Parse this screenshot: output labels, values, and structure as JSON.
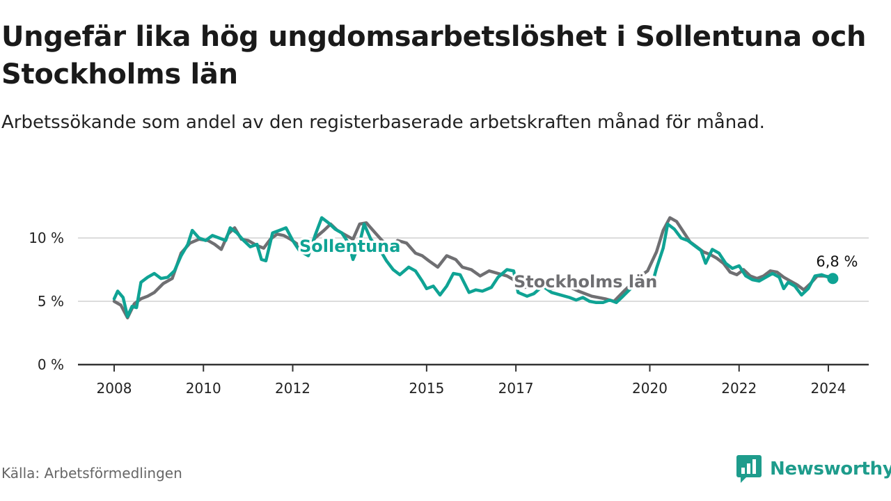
{
  "colors": {
    "sollentuna": "#0fa394",
    "stockholm": "#6f6f72",
    "grid": "#dcdcdc",
    "axis": "#333333",
    "brand": "#1e9c8c"
  },
  "source": "Källa: Arbetsförmedlingen",
  "brand": {
    "name": "Newsworthy",
    "icon": "newsworthy-logo-icon"
  },
  "chart_data": {
    "type": "line",
    "title": "Ungefär lika hög ungdomsarbetslöshet i Sollentuna och Stockholms län",
    "subtitle": "Arbetssökande som andel av den registerbaserade arbetskraften månad för månad.",
    "xlabel": "",
    "ylabel": "",
    "xlim": [
      2008.0,
      2024.25
    ],
    "ylim": [
      0,
      12
    ],
    "x_ticks": [
      {
        "value": 2008,
        "label": "2008"
      },
      {
        "value": 2010,
        "label": "2010"
      },
      {
        "value": 2012,
        "label": "2012"
      },
      {
        "value": 2015,
        "label": "2015"
      },
      {
        "value": 2017,
        "label": "2017"
      },
      {
        "value": 2020,
        "label": "2020"
      },
      {
        "value": 2022,
        "label": "2022"
      },
      {
        "value": 2024,
        "label": "2024"
      }
    ],
    "y_ticks": [
      {
        "value": 0,
        "label": "0 %"
      },
      {
        "value": 5,
        "label": "5 %"
      },
      {
        "value": 10,
        "label": "10 %"
      }
    ],
    "grid": true,
    "series": [
      {
        "name": "Stockholms län",
        "label": "Stockholms län",
        "points": [
          [
            2008.0,
            5.0
          ],
          [
            2008.15,
            4.7
          ],
          [
            2008.3,
            3.7
          ],
          [
            2008.45,
            4.8
          ],
          [
            2008.6,
            5.2
          ],
          [
            2008.75,
            5.4
          ],
          [
            2008.9,
            5.7
          ],
          [
            2009.1,
            6.4
          ],
          [
            2009.3,
            6.8
          ],
          [
            2009.5,
            8.8
          ],
          [
            2009.7,
            9.6
          ],
          [
            2009.9,
            9.9
          ],
          [
            2010.1,
            9.8
          ],
          [
            2010.25,
            9.5
          ],
          [
            2010.4,
            9.1
          ],
          [
            2010.55,
            10.3
          ],
          [
            2010.7,
            10.8
          ],
          [
            2010.85,
            9.9
          ],
          [
            2011.0,
            9.8
          ],
          [
            2011.2,
            9.4
          ],
          [
            2011.35,
            9.2
          ],
          [
            2011.5,
            9.9
          ],
          [
            2011.65,
            10.3
          ],
          [
            2011.8,
            10.2
          ],
          [
            2011.95,
            9.9
          ],
          [
            2012.15,
            9.4
          ],
          [
            2012.3,
            9.0
          ],
          [
            2012.5,
            10.0
          ],
          [
            2012.7,
            10.6
          ],
          [
            2012.85,
            11.1
          ],
          [
            2013.0,
            10.6
          ],
          [
            2013.2,
            10.2
          ],
          [
            2013.35,
            9.9
          ],
          [
            2013.5,
            11.1
          ],
          [
            2013.65,
            11.2
          ],
          [
            2013.8,
            10.6
          ],
          [
            2014.0,
            9.8
          ],
          [
            2014.2,
            9.3
          ],
          [
            2014.35,
            9.8
          ],
          [
            2014.55,
            9.6
          ],
          [
            2014.75,
            8.8
          ],
          [
            2014.9,
            8.6
          ],
          [
            2015.05,
            8.2
          ],
          [
            2015.25,
            7.7
          ],
          [
            2015.45,
            8.6
          ],
          [
            2015.65,
            8.3
          ],
          [
            2015.8,
            7.7
          ],
          [
            2016.0,
            7.5
          ],
          [
            2016.2,
            7.0
          ],
          [
            2016.4,
            7.4
          ],
          [
            2016.6,
            7.2
          ],
          [
            2016.8,
            7.0
          ],
          [
            2016.95,
            6.7
          ]
        ]
      },
      {
        "name": "Sollentuna",
        "label": "Sollentuna",
        "points": [
          [
            2008.0,
            5.2
          ],
          [
            2008.08,
            5.8
          ],
          [
            2008.2,
            5.3
          ],
          [
            2008.3,
            3.8
          ],
          [
            2008.4,
            4.6
          ],
          [
            2008.5,
            4.5
          ],
          [
            2008.6,
            6.5
          ],
          [
            2008.75,
            6.9
          ],
          [
            2008.9,
            7.2
          ],
          [
            2009.05,
            6.8
          ],
          [
            2009.2,
            6.9
          ],
          [
            2009.35,
            7.4
          ],
          [
            2009.5,
            8.6
          ],
          [
            2009.65,
            9.5
          ],
          [
            2009.75,
            10.6
          ],
          [
            2009.9,
            10.0
          ],
          [
            2010.05,
            9.8
          ],
          [
            2010.2,
            10.2
          ],
          [
            2010.35,
            10.0
          ],
          [
            2010.5,
            9.8
          ],
          [
            2010.6,
            10.8
          ],
          [
            2010.75,
            10.4
          ],
          [
            2010.9,
            9.8
          ],
          [
            2011.05,
            9.3
          ],
          [
            2011.2,
            9.5
          ],
          [
            2011.3,
            8.3
          ],
          [
            2011.4,
            8.2
          ],
          [
            2011.55,
            10.4
          ],
          [
            2011.7,
            10.6
          ],
          [
            2011.85,
            10.8
          ],
          [
            2012.0,
            9.8
          ],
          [
            2012.15,
            9.0
          ],
          [
            2012.35,
            8.6
          ],
          [
            2012.5,
            10.2
          ],
          [
            2012.65,
            11.6
          ],
          [
            2012.8,
            11.2
          ],
          [
            2012.95,
            10.7
          ],
          [
            2013.1,
            10.4
          ],
          [
            2013.25,
            9.6
          ],
          [
            2013.35,
            8.3
          ],
          [
            2013.5,
            9.6
          ],
          [
            2013.6,
            11.1
          ],
          [
            2013.75,
            9.9
          ],
          [
            2013.95,
            9.1
          ],
          [
            2014.1,
            8.2
          ],
          [
            2014.25,
            7.5
          ],
          [
            2014.4,
            7.1
          ],
          [
            2014.6,
            7.7
          ],
          [
            2014.75,
            7.4
          ],
          [
            2014.9,
            6.6
          ],
          [
            2015.0,
            6.0
          ],
          [
            2015.15,
            6.2
          ],
          [
            2015.3,
            5.5
          ],
          [
            2015.45,
            6.2
          ],
          [
            2015.6,
            7.2
          ],
          [
            2015.75,
            7.1
          ],
          [
            2015.95,
            5.7
          ],
          [
            2016.1,
            5.9
          ],
          [
            2016.25,
            5.8
          ],
          [
            2016.45,
            6.1
          ],
          [
            2016.6,
            6.9
          ],
          [
            2016.8,
            7.5
          ],
          [
            2016.95,
            7.4
          ],
          [
            2017.05,
            5.7
          ],
          [
            2017.25,
            5.4
          ],
          [
            2017.4,
            5.6
          ],
          [
            2017.6,
            6.2
          ],
          [
            2017.8,
            5.7
          ],
          [
            2018.0,
            5.5
          ],
          [
            2018.2,
            5.3
          ],
          [
            2018.35,
            5.1
          ],
          [
            2018.5,
            5.3
          ],
          [
            2018.65,
            5.0
          ],
          [
            2018.8,
            4.9
          ],
          [
            2018.95,
            4.9
          ],
          [
            2019.1,
            5.1
          ],
          [
            2019.25,
            4.9
          ],
          [
            2019.4,
            5.4
          ],
          [
            2019.6,
            6.1
          ],
          [
            2019.75,
            6.5
          ],
          [
            2019.95,
            6.7
          ],
          [
            2020.05,
            6.3
          ],
          [
            2020.15,
            7.6
          ],
          [
            2020.3,
            9.2
          ],
          [
            2020.4,
            11.1
          ],
          [
            2020.55,
            10.7
          ],
          [
            2020.7,
            10.0
          ],
          [
            2020.85,
            9.8
          ],
          [
            2021.0,
            9.4
          ],
          [
            2021.15,
            9.0
          ],
          [
            2021.25,
            8.0
          ],
          [
            2021.4,
            9.1
          ],
          [
            2021.55,
            8.8
          ],
          [
            2021.7,
            8.0
          ],
          [
            2021.85,
            7.6
          ],
          [
            2022.0,
            7.8
          ],
          [
            2022.15,
            7.0
          ],
          [
            2022.3,
            6.7
          ],
          [
            2022.45,
            6.6
          ],
          [
            2022.6,
            6.9
          ],
          [
            2022.75,
            7.2
          ],
          [
            2022.9,
            6.9
          ],
          [
            2023.0,
            6.0
          ],
          [
            2023.1,
            6.5
          ],
          [
            2023.25,
            6.2
          ],
          [
            2023.4,
            5.5
          ],
          [
            2023.55,
            6.0
          ],
          [
            2023.7,
            7.0
          ],
          [
            2023.85,
            7.1
          ],
          [
            2024.0,
            6.9
          ],
          [
            2024.1,
            6.8
          ]
        ]
      }
    ],
    "extra_series_stockholm_tail": [
      [
        2016.95,
        6.7
      ],
      [
        2017.2,
        6.1
      ],
      [
        2017.5,
        6.5
      ],
      [
        2017.8,
        6.0
      ],
      [
        2018.1,
        6.3
      ],
      [
        2018.4,
        5.8
      ],
      [
        2018.7,
        5.4
      ],
      [
        2019.0,
        5.2
      ],
      [
        2019.2,
        5.0
      ],
      [
        2019.45,
        5.9
      ],
      [
        2019.75,
        6.9
      ],
      [
        2019.95,
        7.4
      ],
      [
        2020.15,
        8.9
      ],
      [
        2020.3,
        10.6
      ],
      [
        2020.45,
        11.6
      ],
      [
        2020.6,
        11.3
      ],
      [
        2020.75,
        10.5
      ],
      [
        2020.9,
        9.7
      ],
      [
        2021.05,
        9.3
      ],
      [
        2021.2,
        8.9
      ],
      [
        2021.35,
        8.7
      ],
      [
        2021.5,
        8.4
      ],
      [
        2021.65,
        8.0
      ],
      [
        2021.8,
        7.3
      ],
      [
        2021.95,
        7.1
      ],
      [
        2022.1,
        7.5
      ],
      [
        2022.25,
        7.0
      ],
      [
        2022.4,
        6.8
      ],
      [
        2022.55,
        7.0
      ],
      [
        2022.7,
        7.4
      ],
      [
        2022.85,
        7.3
      ],
      [
        2023.0,
        6.9
      ],
      [
        2023.15,
        6.6
      ],
      [
        2023.3,
        6.3
      ],
      [
        2023.45,
        5.9
      ],
      [
        2023.6,
        6.4
      ],
      [
        2023.75,
        7.0
      ],
      [
        2023.9,
        7.0
      ],
      [
        2024.1,
        6.9
      ]
    ],
    "annotations": [
      {
        "text": "Sollentuna",
        "series": "Sollentuna"
      },
      {
        "text": "Stockholms län",
        "series": "Stockholms län"
      },
      {
        "text": "6,8 %",
        "series": "Sollentuna",
        "x": 2024.1,
        "y": 6.8
      }
    ]
  }
}
